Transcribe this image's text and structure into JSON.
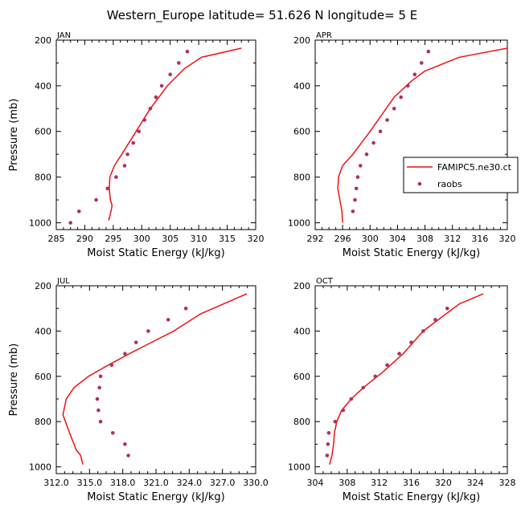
{
  "figure_title": "Western_Europe  latitude= 51.626 N longitude= 5 E",
  "colors": {
    "model": "#ee1111",
    "obs": "#b03060"
  },
  "legend": {
    "model_label": "FAMIPC5.ne30.ct",
    "obs_label": "raobs"
  },
  "chart_data": [
    {
      "type": "line",
      "panel_title": "JAN",
      "xlabel": "Moist Static Energy (kJ/kg)",
      "ylabel": "Pressure (mb)",
      "xlim": [
        285,
        320
      ],
      "ylim": [
        1030,
        200
      ],
      "xticks": [
        285,
        290,
        295,
        300,
        305,
        310,
        315,
        320
      ],
      "xtick_labels": [
        "285",
        "290",
        "295",
        "300",
        "305",
        "310",
        "315",
        "320"
      ],
      "yticks": [
        200,
        400,
        600,
        800,
        1000
      ],
      "ytick_labels": [
        "200",
        "400",
        "600",
        "800",
        "1000"
      ],
      "series": [
        {
          "kind": "line",
          "x": [
            294.2,
            294.6,
            294.8,
            294.5,
            294.3,
            294.4,
            295.2,
            296.5,
            299,
            301.5,
            304.5,
            307.5,
            310.5,
            317.5
          ],
          "y": [
            990,
            950,
            925,
            900,
            850,
            800,
            750,
            700,
            600,
            500,
            400,
            325,
            275,
            235
          ]
        },
        {
          "kind": "points",
          "x": [
            287.5,
            289,
            292,
            294,
            295.5,
            297,
            297.5,
            298.5,
            299.5,
            300.5,
            301.5,
            302.5,
            303.5,
            305,
            306.5,
            308
          ],
          "y": [
            1000,
            950,
            900,
            850,
            800,
            750,
            700,
            650,
            600,
            550,
            500,
            450,
            400,
            350,
            300,
            250
          ]
        }
      ]
    },
    {
      "type": "line",
      "panel_title": "APR",
      "xlabel": "Moist Static Energy (kJ/kg)",
      "ylabel": "",
      "xlim": [
        292,
        320
      ],
      "ylim": [
        1030,
        200
      ],
      "xticks": [
        292,
        296,
        300,
        304,
        308,
        312,
        316,
        320
      ],
      "xtick_labels": [
        "292",
        "296",
        "300",
        "304",
        "308",
        "312",
        "316",
        "320"
      ],
      "yticks": [
        200,
        400,
        600,
        800,
        1000
      ],
      "ytick_labels": [
        "200",
        "400",
        "600",
        "800",
        "1000"
      ],
      "series": [
        {
          "kind": "line",
          "x": [
            296,
            295.9,
            295.6,
            295.3,
            295.4,
            296,
            297.5,
            300,
            303.5,
            306,
            308,
            313,
            320
          ],
          "y": [
            1000,
            950,
            900,
            850,
            800,
            750,
            700,
            600,
            450,
            380,
            335,
            275,
            235
          ]
        },
        {
          "kind": "points",
          "x": [
            297.5,
            297.8,
            298,
            298.2,
            298.6,
            299.5,
            300.5,
            301.5,
            302.5,
            303.5,
            304.5,
            305.5,
            306.5,
            307.5,
            308.5
          ],
          "y": [
            950,
            900,
            850,
            800,
            750,
            700,
            650,
            600,
            550,
            500,
            450,
            400,
            350,
            300,
            250
          ]
        }
      ]
    },
    {
      "type": "line",
      "panel_title": "JUL",
      "xlabel": "Moist Static Energy (kJ/kg)",
      "ylabel": "Pressure (mb)",
      "xlim": [
        312,
        330
      ],
      "ylim": [
        1030,
        200
      ],
      "xticks": [
        312,
        315,
        318,
        321,
        324,
        327,
        330
      ],
      "xtick_labels": [
        "312.0",
        "315.0",
        "318.0",
        "321.0",
        "324.0",
        "327.0",
        "330.0"
      ],
      "yticks": [
        200,
        400,
        600,
        800,
        1000
      ],
      "ytick_labels": [
        "200",
        "400",
        "600",
        "800",
        "1000"
      ],
      "series": [
        {
          "kind": "line",
          "x": [
            314.4,
            314.2,
            313.8,
            313.2,
            312.6,
            312.9,
            313.6,
            314.9,
            316.7,
            318.6,
            320.6,
            322.6,
            325,
            329.2
          ],
          "y": [
            990,
            950,
            925,
            850,
            770,
            700,
            650,
            600,
            550,
            500,
            450,
            400,
            325,
            235
          ]
        },
        {
          "kind": "points",
          "x": [
            318.5,
            318.2,
            317.1,
            316,
            315.8,
            315.7,
            315.9,
            316,
            317,
            318.2,
            319.2,
            320.3,
            322.1,
            323.7
          ],
          "y": [
            950,
            900,
            850,
            800,
            750,
            700,
            650,
            600,
            550,
            500,
            450,
            400,
            350,
            300
          ]
        }
      ]
    },
    {
      "type": "line",
      "panel_title": "OCT",
      "xlabel": "Moist Static Energy (kJ/kg)",
      "ylabel": "",
      "xlim": [
        304,
        328
      ],
      "ylim": [
        1030,
        200
      ],
      "xticks": [
        304,
        308,
        312,
        316,
        320,
        324,
        328
      ],
      "xtick_labels": [
        "304",
        "308",
        "312",
        "316",
        "320",
        "324",
        "328"
      ],
      "yticks": [
        200,
        400,
        600,
        800,
        1000
      ],
      "ytick_labels": [
        "200",
        "400",
        "600",
        "800",
        "1000"
      ],
      "series": [
        {
          "kind": "line",
          "x": [
            305.8,
            306.1,
            306.3,
            306.4,
            306.7,
            307.3,
            308.5,
            310,
            312.5,
            315,
            317.5,
            322,
            325
          ],
          "y": [
            990,
            950,
            900,
            850,
            800,
            750,
            700,
            650,
            580,
            500,
            400,
            280,
            235
          ]
        },
        {
          "kind": "points",
          "x": [
            305.5,
            305.6,
            305.7,
            306.5,
            307.5,
            308.5,
            310,
            311.5,
            313,
            314.5,
            316,
            317.5,
            319,
            320.5
          ],
          "y": [
            950,
            900,
            850,
            800,
            750,
            700,
            650,
            600,
            550,
            500,
            450,
            400,
            350,
            300
          ]
        }
      ]
    }
  ]
}
